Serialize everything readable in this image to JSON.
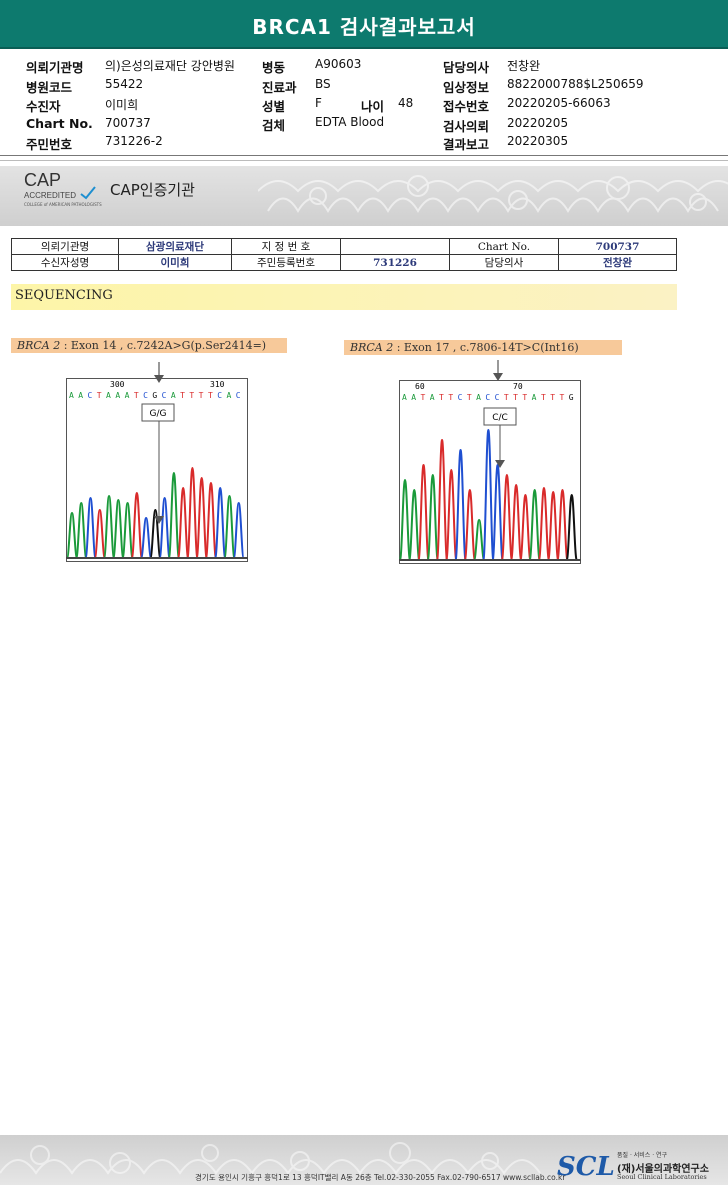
{
  "title": "BRCA1 검사결과보고서",
  "header": {
    "col1": [
      {
        "label": "의뢰기관명",
        "value": "의)은성의료재단 강안병원"
      },
      {
        "label": "병원코드",
        "value": "55422"
      },
      {
        "label": "수진자",
        "value": "이미희"
      },
      {
        "label": "Chart No.",
        "value": "700737"
      },
      {
        "label": "주민번호",
        "value": "731226-2"
      }
    ],
    "col2": [
      {
        "label": "병동",
        "value": "A90603"
      },
      {
        "label": "진료과",
        "value": "BS"
      },
      {
        "label": "성별",
        "value": "F"
      },
      {
        "label": "검체",
        "value": "EDTA Blood"
      }
    ],
    "age": {
      "label": "나이",
      "value": "48"
    },
    "col3": [
      {
        "label": "담당의사",
        "value": "전창완"
      },
      {
        "label": "임상정보",
        "value": "8822000788$L250659"
      },
      {
        "label": "접수번호",
        "value": "20220205-66063"
      },
      {
        "label": "검사의뢰",
        "value": "20220205"
      },
      {
        "label": "결과보고",
        "value": "20220305"
      }
    ]
  },
  "cap": {
    "logo_text": "CAP",
    "accredited": "ACCREDITED",
    "college": "COLLEGE of AMERICAN PATHOLOGISTS",
    "title": "CAP인증기관"
  },
  "info_table": {
    "r1": [
      "의뢰기관명",
      "삼광의료재단",
      "지 정 번 호",
      "",
      "Chart No.",
      "700737"
    ],
    "r2": [
      "수신자성명",
      "이미희",
      "주민등록번호",
      "731226",
      "담당의사",
      "전창완"
    ]
  },
  "section": "SEQUENCING",
  "mutations": [
    {
      "gene": "BRCA 2",
      "desc": " : Exon 14 , c.7242A>G(p.Ser2414=)",
      "seq": "AACTAAATCGCATTTTCAC",
      "tick1": "300",
      "tick2": "310",
      "genotype": "G/G"
    },
    {
      "gene": "BRCA 2",
      "desc": " : Exon 17 , c.7806-14T>C(Int16)",
      "seq": "AATATTCTACCTTTATTTG",
      "tick1": "60",
      "tick2": "70",
      "genotype": "C/C"
    }
  ],
  "footer": {
    "address": "경기도 용인시 기흥구 흥덕1로 13 흥덕IT밸리 A동 26층  Tel.02-330-2055  Fax.02-790-6517  www.scllab.co.kr",
    "brand": "SCL",
    "tagline": "품질 · 서비스 · 연구",
    "org_kr": "(재)서울의과학연구소",
    "org_en": "Seoul Clinical Laboratories"
  },
  "colors": {
    "title_bar": "#0d7a6e",
    "A": "#1a9a3a",
    "C": "#1f4fd1",
    "G": "#111111",
    "T": "#d92b2b"
  }
}
